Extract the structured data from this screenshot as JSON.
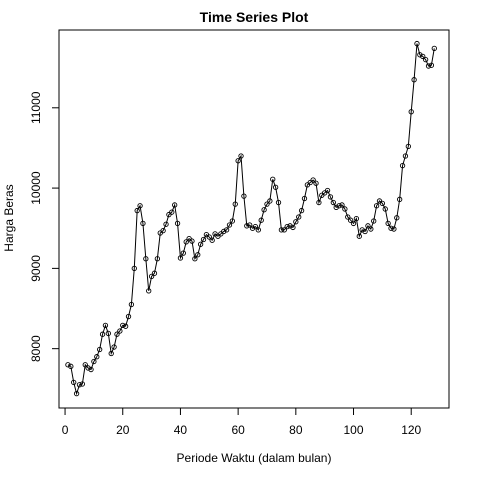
{
  "chart_data": {
    "type": "line",
    "title": "Time Series Plot",
    "xlabel": "Periode Waktu (dalam bulan)",
    "ylabel": "Harga Beras",
    "xlim": [
      -2.1,
      133.1
    ],
    "ylim": [
      7261,
      11969
    ],
    "x_ticks": [
      0,
      20,
      40,
      60,
      80,
      100,
      120
    ],
    "y_ticks": [
      8000,
      9000,
      10000,
      11000
    ],
    "markers": "open-circle",
    "x_start": 1,
    "x_step": 1,
    "values": [
      7800,
      7780,
      7580,
      7440,
      7550,
      7560,
      7800,
      7760,
      7740,
      7840,
      7900,
      7990,
      8180,
      8290,
      8190,
      7940,
      8020,
      8180,
      8220,
      8290,
      8280,
      8400,
      8550,
      9000,
      9720,
      9780,
      9560,
      9120,
      8720,
      8900,
      8940,
      9120,
      9440,
      9470,
      9550,
      9670,
      9700,
      9790,
      9560,
      9130,
      9190,
      9330,
      9370,
      9340,
      9120,
      9170,
      9300,
      9360,
      9420,
      9390,
      9350,
      9430,
      9400,
      9430,
      9460,
      9480,
      9540,
      9590,
      9800,
      10340,
      10400,
      9900,
      9530,
      9540,
      9500,
      9520,
      9480,
      9600,
      9730,
      9800,
      9840,
      10110,
      10010,
      9820,
      9480,
      9480,
      9520,
      9530,
      9510,
      9580,
      9640,
      9720,
      9870,
      10040,
      10070,
      10100,
      10060,
      9820,
      9910,
      9940,
      9970,
      9890,
      9820,
      9760,
      9780,
      9790,
      9740,
      9640,
      9600,
      9560,
      9620,
      9400,
      9480,
      9460,
      9530,
      9490,
      9590,
      9780,
      9840,
      9810,
      9740,
      9560,
      9500,
      9490,
      9630,
      9860,
      10280,
      10400,
      10520,
      10950,
      11350,
      11800,
      11660,
      11640,
      11600,
      11520,
      11530,
      11740
    ]
  }
}
